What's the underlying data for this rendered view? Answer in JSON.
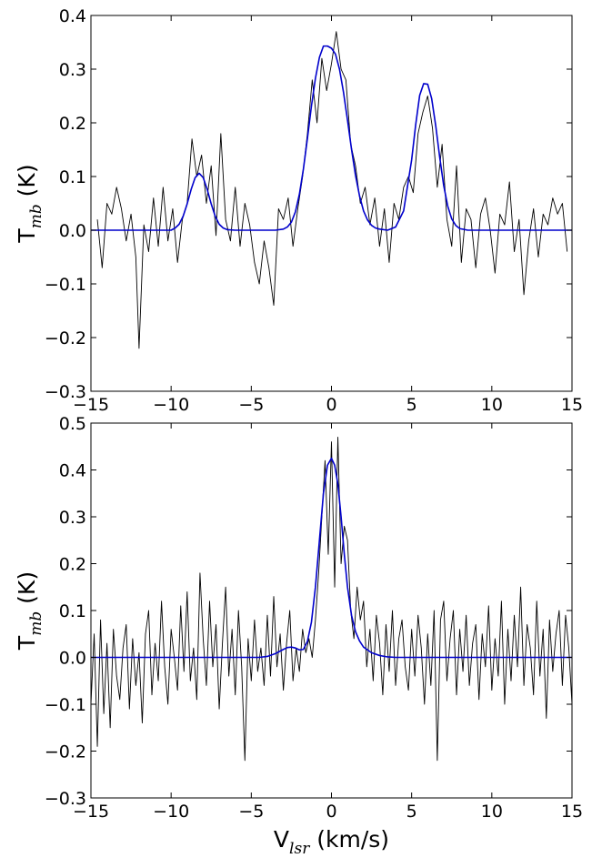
{
  "chart_data": [
    {
      "type": "line",
      "ylabel": {
        "main": "T",
        "sub": "mb",
        "unit": " (K)"
      },
      "xlim": [
        -15,
        15
      ],
      "ylim": [
        -0.3,
        0.4
      ],
      "xticks": [
        "−15",
        "−10",
        "−5",
        "0",
        "5",
        "10",
        "15"
      ],
      "xtick_values": [
        -15,
        -10,
        -5,
        0,
        5,
        10,
        15
      ],
      "yticks": [
        "−0.3",
        "−0.2",
        "−0.1",
        "0.0",
        "0.1",
        "0.2",
        "0.3",
        "0.4"
      ],
      "ytick_values": [
        -0.3,
        -0.2,
        -0.1,
        0.0,
        0.1,
        0.2,
        0.3,
        0.4
      ],
      "series": [
        {
          "kind": "spectrum",
          "color": "#000000",
          "x": [
            -14.6,
            -14.3,
            -14.0,
            -13.7,
            -13.4,
            -13.1,
            -12.8,
            -12.5,
            -12.2,
            -12.0,
            -11.7,
            -11.4,
            -11.1,
            -10.8,
            -10.5,
            -10.2,
            -9.9,
            -9.6,
            -9.3,
            -9.0,
            -8.7,
            -8.4,
            -8.1,
            -7.8,
            -7.5,
            -7.2,
            -6.9,
            -6.6,
            -6.3,
            -6.0,
            -5.7,
            -5.4,
            -5.1,
            -4.8,
            -4.5,
            -4.2,
            -3.9,
            -3.6,
            -3.3,
            -3.0,
            -2.7,
            -2.4,
            -2.1,
            -1.8,
            -1.5,
            -1.2,
            -0.9,
            -0.6,
            -0.3,
            0.0,
            0.3,
            0.6,
            0.9,
            1.2,
            1.5,
            1.8,
            2.1,
            2.4,
            2.7,
            3.0,
            3.3,
            3.6,
            3.9,
            4.2,
            4.5,
            4.8,
            5.1,
            5.4,
            5.7,
            6.0,
            6.3,
            6.6,
            6.9,
            7.2,
            7.5,
            7.8,
            8.1,
            8.4,
            8.7,
            9.0,
            9.3,
            9.6,
            9.9,
            10.2,
            10.5,
            10.8,
            11.1,
            11.4,
            11.7,
            12.0,
            12.3,
            12.6,
            12.9,
            13.2,
            13.5,
            13.8,
            14.1,
            14.4,
            14.7
          ],
          "y": [
            0.02,
            -0.07,
            0.05,
            0.03,
            0.08,
            0.04,
            -0.02,
            0.03,
            -0.05,
            -0.22,
            0.01,
            -0.04,
            0.06,
            -0.03,
            0.08,
            -0.02,
            0.04,
            -0.06,
            0.02,
            0.05,
            0.17,
            0.1,
            0.14,
            0.05,
            0.12,
            -0.01,
            0.18,
            0.02,
            -0.02,
            0.08,
            -0.03,
            0.05,
            0.01,
            -0.06,
            -0.1,
            -0.02,
            -0.07,
            -0.14,
            0.04,
            0.02,
            0.06,
            -0.03,
            0.04,
            0.1,
            0.18,
            0.28,
            0.2,
            0.32,
            0.26,
            0.31,
            0.37,
            0.3,
            0.28,
            0.16,
            0.12,
            0.05,
            0.08,
            0.01,
            0.06,
            -0.03,
            0.04,
            -0.06,
            0.05,
            0.02,
            0.08,
            0.1,
            0.07,
            0.18,
            0.22,
            0.25,
            0.19,
            0.08,
            0.16,
            0.02,
            -0.03,
            0.12,
            -0.06,
            0.04,
            0.02,
            -0.07,
            0.03,
            0.06,
            0.0,
            -0.08,
            0.03,
            0.01,
            0.09,
            -0.04,
            0.02,
            -0.12,
            -0.02,
            0.04,
            -0.05,
            0.03,
            0.01,
            0.06,
            0.03,
            0.05,
            -0.04
          ]
        },
        {
          "kind": "fit",
          "color": "#0000cc",
          "x": [
            -15.0,
            -14.5,
            -14.0,
            -13.5,
            -13.0,
            -12.5,
            -12.0,
            -11.5,
            -11.0,
            -10.5,
            -10.0,
            -9.75,
            -9.5,
            -9.25,
            -9.0,
            -8.75,
            -8.5,
            -8.25,
            -8.0,
            -7.75,
            -7.5,
            -7.25,
            -7.0,
            -6.75,
            -6.5,
            -6.0,
            -5.5,
            -5.0,
            -4.5,
            -4.0,
            -3.5,
            -3.0,
            -2.75,
            -2.5,
            -2.25,
            -2.0,
            -1.75,
            -1.5,
            -1.25,
            -1.0,
            -0.75,
            -0.5,
            -0.25,
            0.0,
            0.25,
            0.5,
            0.75,
            1.0,
            1.25,
            1.5,
            1.75,
            2.0,
            2.25,
            2.5,
            2.75,
            3.0,
            3.5,
            4.0,
            4.5,
            5.0,
            5.25,
            5.5,
            5.75,
            6.0,
            6.25,
            6.5,
            6.75,
            7.0,
            7.25,
            7.5,
            7.75,
            8.0,
            8.5,
            9.0,
            9.5,
            10.0,
            11.0,
            12.0,
            13.0,
            14.0,
            15.0
          ],
          "y": [
            0.0,
            0.0,
            0.0,
            0.0,
            0.0,
            0.0,
            0.0,
            0.0,
            0.0,
            0.0,
            0.0,
            0.004,
            0.011,
            0.026,
            0.049,
            0.076,
            0.098,
            0.106,
            0.098,
            0.076,
            0.049,
            0.026,
            0.011,
            0.004,
            0.001,
            0.0,
            0.0,
            0.0,
            0.0,
            0.0,
            0.0,
            0.002,
            0.006,
            0.015,
            0.034,
            0.067,
            0.114,
            0.171,
            0.231,
            0.283,
            0.322,
            0.343,
            0.343,
            0.339,
            0.328,
            0.3,
            0.257,
            0.205,
            0.151,
            0.102,
            0.064,
            0.036,
            0.019,
            0.009,
            0.004,
            0.002,
            0.0,
            0.006,
            0.036,
            0.131,
            0.196,
            0.251,
            0.273,
            0.272,
            0.245,
            0.195,
            0.136,
            0.083,
            0.045,
            0.021,
            0.009,
            0.003,
            0.0,
            0.0,
            0.0,
            0.0,
            0.0,
            0.0,
            0.0,
            0.0,
            0.0
          ]
        }
      ]
    },
    {
      "type": "line",
      "ylabel": {
        "main": "T",
        "sub": "mb",
        "unit": " (K)"
      },
      "xlabel": {
        "main": "V",
        "sub": "lsr",
        "unit": " (km/s)"
      },
      "xlim": [
        -15,
        15
      ],
      "ylim": [
        -0.3,
        0.5
      ],
      "xticks": [
        "−15",
        "−10",
        "−5",
        "0",
        "5",
        "10",
        "15"
      ],
      "xtick_values": [
        -15,
        -10,
        -5,
        0,
        5,
        10,
        15
      ],
      "yticks": [
        "−0.3",
        "−0.2",
        "−0.1",
        "0.0",
        "0.1",
        "0.2",
        "0.3",
        "0.4",
        "0.5"
      ],
      "ytick_values": [
        -0.3,
        -0.2,
        -0.1,
        0.0,
        0.1,
        0.2,
        0.3,
        0.4,
        0.5
      ],
      "series": [
        {
          "kind": "spectrum",
          "color": "#000000",
          "x": [
            -15.0,
            -14.8,
            -14.6,
            -14.4,
            -14.2,
            -14.0,
            -13.8,
            -13.6,
            -13.4,
            -13.2,
            -13.0,
            -12.8,
            -12.6,
            -12.4,
            -12.2,
            -12.0,
            -11.8,
            -11.6,
            -11.4,
            -11.2,
            -11.0,
            -10.8,
            -10.6,
            -10.4,
            -10.2,
            -10.0,
            -9.8,
            -9.6,
            -9.4,
            -9.2,
            -9.0,
            -8.8,
            -8.6,
            -8.4,
            -8.2,
            -8.0,
            -7.8,
            -7.6,
            -7.4,
            -7.2,
            -7.0,
            -6.8,
            -6.6,
            -6.4,
            -6.2,
            -6.0,
            -5.8,
            -5.6,
            -5.4,
            -5.2,
            -5.0,
            -4.8,
            -4.6,
            -4.4,
            -4.2,
            -4.0,
            -3.8,
            -3.6,
            -3.4,
            -3.2,
            -3.0,
            -2.8,
            -2.6,
            -2.4,
            -2.2,
            -2.0,
            -1.8,
            -1.6,
            -1.4,
            -1.2,
            -1.0,
            -0.8,
            -0.6,
            -0.4,
            -0.2,
            0.0,
            0.2,
            0.4,
            0.6,
            0.8,
            1.0,
            1.2,
            1.4,
            1.6,
            1.8,
            2.0,
            2.2,
            2.4,
            2.6,
            2.8,
            3.0,
            3.2,
            3.4,
            3.6,
            3.8,
            4.0,
            4.2,
            4.4,
            4.6,
            4.8,
            5.0,
            5.2,
            5.4,
            5.6,
            5.8,
            6.0,
            6.2,
            6.4,
            6.6,
            6.8,
            7.0,
            7.2,
            7.4,
            7.6,
            7.8,
            8.0,
            8.2,
            8.4,
            8.6,
            8.8,
            9.0,
            9.2,
            9.4,
            9.6,
            9.8,
            10.0,
            10.2,
            10.4,
            10.6,
            10.8,
            11.0,
            11.2,
            11.4,
            11.6,
            11.8,
            12.0,
            12.2,
            12.4,
            12.6,
            12.8,
            13.0,
            13.2,
            13.4,
            13.6,
            13.8,
            14.0,
            14.2,
            14.4,
            14.6,
            14.8,
            15.0
          ],
          "y": [
            -0.1,
            0.05,
            -0.19,
            0.08,
            -0.12,
            0.03,
            -0.15,
            0.06,
            -0.04,
            -0.09,
            0.02,
            0.07,
            -0.11,
            0.04,
            -0.06,
            0.01,
            -0.14,
            0.05,
            0.1,
            -0.08,
            0.03,
            -0.05,
            0.12,
            -0.02,
            -0.1,
            0.06,
            0.0,
            -0.07,
            0.11,
            -0.03,
            0.14,
            -0.05,
            0.02,
            -0.09,
            0.18,
            0.04,
            -0.06,
            0.12,
            -0.02,
            0.07,
            -0.11,
            0.03,
            0.15,
            -0.04,
            0.06,
            -0.08,
            0.1,
            -0.02,
            -0.22,
            0.04,
            -0.05,
            0.08,
            -0.03,
            0.02,
            -0.06,
            0.09,
            -0.04,
            0.13,
            -0.02,
            0.05,
            -0.07,
            0.03,
            0.1,
            -0.05,
            0.02,
            -0.03,
            0.06,
            0.01,
            0.04,
            0.0,
            0.08,
            0.18,
            0.3,
            0.42,
            0.22,
            0.46,
            0.15,
            0.47,
            0.2,
            0.28,
            0.25,
            0.1,
            0.04,
            0.15,
            0.08,
            0.12,
            -0.02,
            0.06,
            -0.05,
            0.09,
            0.03,
            -0.08,
            0.07,
            -0.03,
            0.1,
            -0.06,
            0.04,
            0.08,
            -0.02,
            -0.07,
            0.06,
            -0.04,
            0.09,
            0.02,
            -0.1,
            0.05,
            -0.06,
            0.1,
            -0.22,
            0.08,
            0.12,
            -0.05,
            0.04,
            0.1,
            -0.08,
            0.06,
            -0.03,
            0.09,
            -0.06,
            0.03,
            0.07,
            -0.09,
            0.05,
            -0.02,
            0.11,
            -0.07,
            0.04,
            -0.04,
            0.12,
            -0.1,
            0.06,
            -0.05,
            0.09,
            -0.02,
            0.15,
            -0.06,
            0.07,
            0.02,
            -0.08,
            0.12,
            -0.04,
            0.06,
            -0.13,
            0.08,
            -0.03,
            0.05,
            0.1,
            -0.06,
            0.09,
            0.02,
            -0.1
          ]
        },
        {
          "kind": "fit",
          "color": "#0000cc",
          "x": [
            -15.0,
            -12.0,
            -9.0,
            -6.0,
            -4.5,
            -4.0,
            -3.5,
            -3.0,
            -2.75,
            -2.5,
            -2.25,
            -2.0,
            -1.75,
            -1.5,
            -1.25,
            -1.0,
            -0.75,
            -0.5,
            -0.25,
            0.0,
            0.2,
            0.4,
            0.6,
            0.8,
            1.0,
            1.25,
            1.5,
            1.75,
            2.0,
            2.5,
            3.0,
            3.5,
            4.0,
            5.0,
            7.0,
            10.0,
            15.0
          ],
          "y": [
            0.0,
            0.0,
            0.0,
            0.0,
            0.0,
            0.002,
            0.008,
            0.017,
            0.021,
            0.022,
            0.02,
            0.016,
            0.017,
            0.034,
            0.075,
            0.15,
            0.25,
            0.35,
            0.41,
            0.425,
            0.41,
            0.37,
            0.3,
            0.22,
            0.15,
            0.09,
            0.055,
            0.035,
            0.022,
            0.01,
            0.004,
            0.001,
            0.0,
            0.0,
            0.0,
            0.0,
            0.0
          ]
        }
      ]
    }
  ]
}
